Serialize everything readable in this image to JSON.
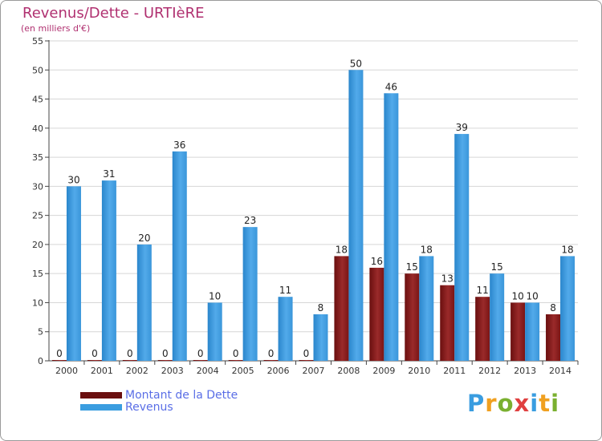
{
  "chart_data": {
    "type": "bar",
    "title": "Revenus/Dette - URTIèRE",
    "subtitle": "(en milliers d'€)",
    "categories": [
      "2000",
      "2001",
      "2002",
      "2003",
      "2004",
      "2005",
      "2006",
      "2007",
      "2008",
      "2009",
      "2010",
      "2011",
      "2012",
      "2013",
      "2014"
    ],
    "series": [
      {
        "name": "Montant de la Dette",
        "values": [
          0,
          0,
          0,
          0,
          0,
          0,
          0,
          0,
          18,
          16,
          15,
          13,
          11,
          10,
          8
        ],
        "color": "#8b1a1a"
      },
      {
        "name": "Revenus",
        "values": [
          30,
          31,
          20,
          36,
          10,
          23,
          11,
          8,
          50,
          46,
          18,
          39,
          15,
          10,
          18
        ],
        "color": "#3a9de0"
      }
    ],
    "ylim": [
      0,
      55
    ],
    "yticks": [
      0,
      5,
      10,
      15,
      20,
      25,
      30,
      35,
      40,
      45,
      50,
      55
    ],
    "grid": true,
    "legend": "bottom-left"
  },
  "logo": {
    "letters": [
      "P",
      "r",
      "o",
      "x",
      "i",
      "t",
      "i"
    ],
    "colors": [
      "#3a9de0",
      "#f0a020",
      "#7ab030",
      "#e04040",
      "#3a9de0",
      "#f0a020",
      "#7ab030"
    ]
  }
}
